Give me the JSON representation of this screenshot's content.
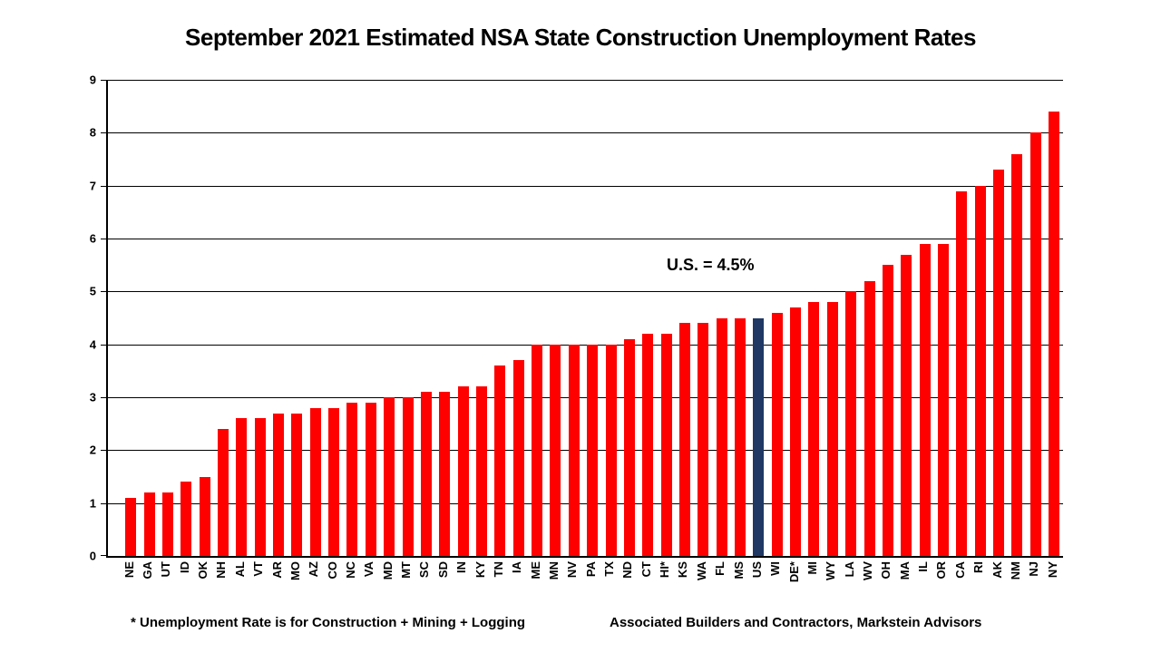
{
  "title": "September 2021 Estimated NSA State Construction Unemployment Rates",
  "annotation": "U.S. = 4.5%",
  "footnote_left": "* Unemployment Rate is for Construction + Mining + Logging",
  "footnote_right": "Associated Builders and Contractors, Markstein Advisors",
  "colors": {
    "bar": "#FF0000",
    "highlight_bar": "#1F3864",
    "axis": "#000000",
    "background": "#FFFFFF"
  },
  "chart_data": {
    "type": "bar",
    "title": "September 2021 Estimated NSA State Construction Unemployment Rates",
    "xlabel": "",
    "ylabel": "",
    "ylim": [
      0,
      9
    ],
    "ytick_interval": 1,
    "grid": "horizontal",
    "legend": "none",
    "annotation": {
      "text": "U.S. = 4.5%",
      "near_category": "US"
    },
    "highlight_category": "US",
    "categories": [
      "NE",
      "GA",
      "UT",
      "ID",
      "OK",
      "NH",
      "AL",
      "VT",
      "AR",
      "MO",
      "AZ",
      "CO",
      "NC",
      "VA",
      "MD",
      "MT",
      "SC",
      "SD",
      "IN",
      "KY",
      "TN",
      "IA",
      "ME",
      "MN",
      "NV",
      "PA",
      "TX",
      "ND",
      "CT",
      "HI*",
      "KS",
      "WA",
      "FL",
      "MS",
      "US",
      "WI",
      "DE*",
      "MI",
      "WY",
      "LA",
      "WV",
      "OH",
      "MA",
      "IL",
      "OR",
      "CA",
      "RI",
      "AK",
      "NM",
      "NJ",
      "NY"
    ],
    "values": [
      1.1,
      1.2,
      1.2,
      1.4,
      1.5,
      2.4,
      2.6,
      2.6,
      2.7,
      2.7,
      2.8,
      2.8,
      2.9,
      2.9,
      3.0,
      3.0,
      3.1,
      3.1,
      3.2,
      3.2,
      3.6,
      3.7,
      4.0,
      4.0,
      4.0,
      4.0,
      4.0,
      4.1,
      4.2,
      4.2,
      4.4,
      4.4,
      4.5,
      4.5,
      4.5,
      4.6,
      4.7,
      4.8,
      4.8,
      5.0,
      5.2,
      5.5,
      5.7,
      5.9,
      5.9,
      6.9,
      7.0,
      7.3,
      7.6,
      8.0,
      8.4
    ]
  }
}
